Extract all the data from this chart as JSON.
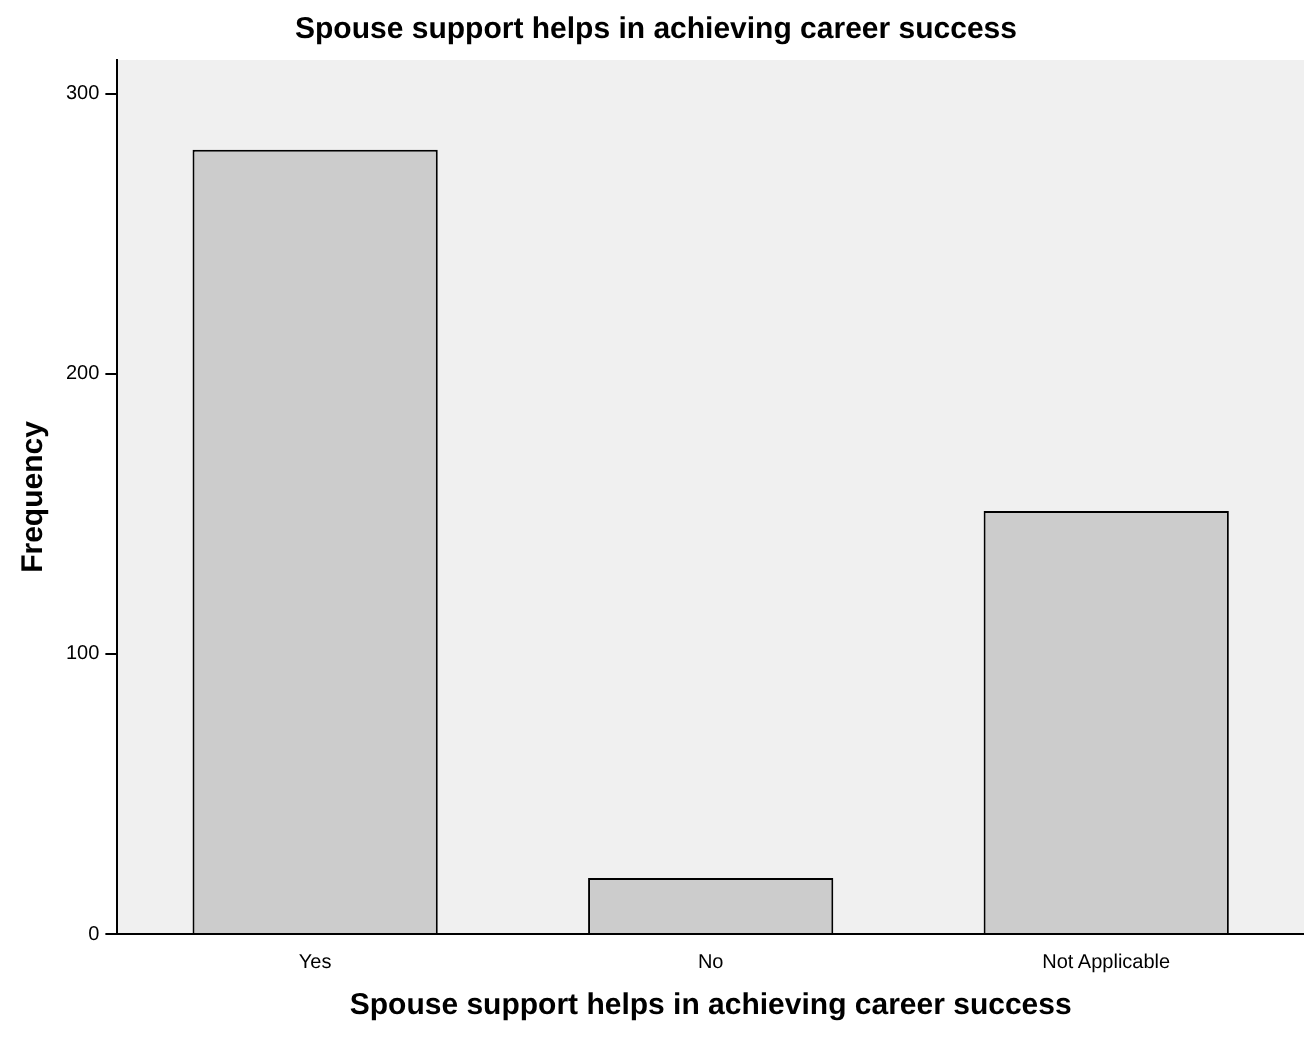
{
  "chart_data": {
    "type": "bar",
    "title": "Spouse support helps in achieving career success",
    "xlabel": "Spouse support helps in achieving career success",
    "ylabel": "Frequency",
    "categories": [
      "Yes",
      "No",
      "Not Applicable"
    ],
    "values": [
      280,
      20,
      151
    ],
    "color": "#cccccc",
    "ylim": [
      0,
      312
    ],
    "yticks": [
      0,
      100,
      200,
      300
    ],
    "grid": false,
    "legend": false
  }
}
